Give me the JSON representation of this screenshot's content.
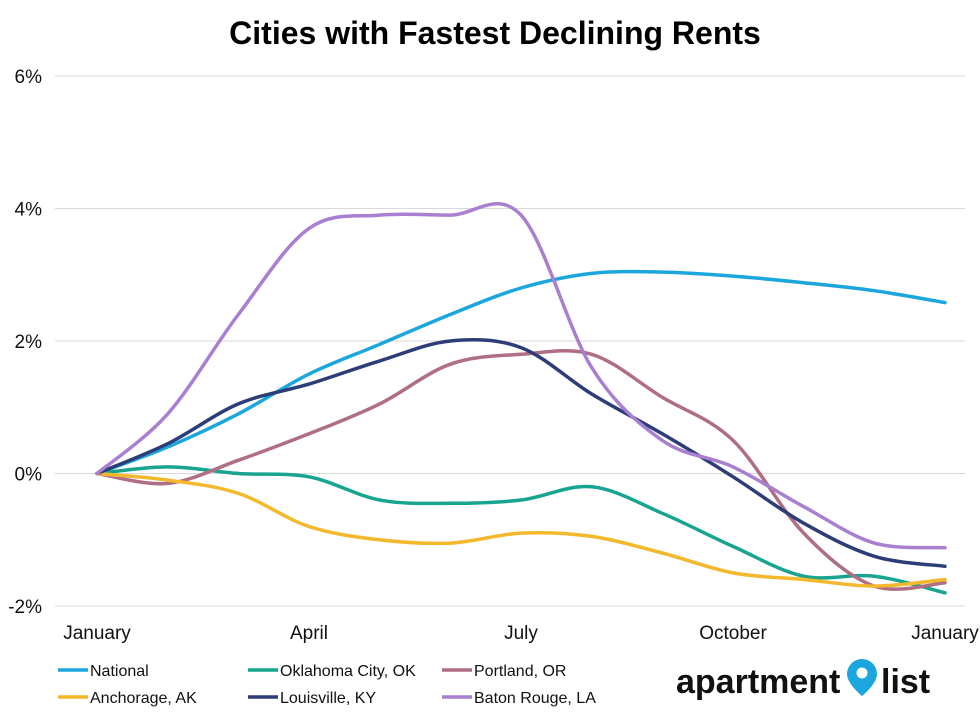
{
  "chart_data": {
    "type": "line",
    "title": "Cities with Fastest Declining Rents",
    "xlabel": "",
    "ylabel": "",
    "x": [
      0,
      1,
      2,
      3,
      4,
      5,
      6,
      7,
      8,
      9,
      10,
      11,
      12
    ],
    "x_tick_labels": [
      {
        "x": 0,
        "label": "January"
      },
      {
        "x": 3,
        "label": "April"
      },
      {
        "x": 6,
        "label": "July"
      },
      {
        "x": 9,
        "label": "October"
      },
      {
        "x": 12,
        "label": "January"
      }
    ],
    "ylim": [
      -2,
      6
    ],
    "y_ticks": [
      -2,
      0,
      2,
      4,
      6
    ],
    "y_tick_labels": [
      "-2%",
      "0%",
      "2%",
      "4%",
      "6%"
    ],
    "grid": true,
    "legend_position": "bottom-left",
    "series": [
      {
        "name": "National",
        "color": "#1ba7de",
        "values": [
          0,
          0.4,
          0.9,
          1.5,
          1.95,
          2.4,
          2.8,
          3.02,
          3.04,
          2.98,
          2.88,
          2.76,
          2.58
        ]
      },
      {
        "name": "Oklahoma City, OK",
        "color": "#17a58f",
        "values": [
          0,
          0.1,
          0.0,
          -0.05,
          -0.4,
          -0.45,
          -0.4,
          -0.2,
          -0.6,
          -1.1,
          -1.55,
          -1.55,
          -1.8
        ]
      },
      {
        "name": "Portland, OR",
        "color": "#b06e83",
        "values": [
          0,
          -0.15,
          0.2,
          0.6,
          1.05,
          1.65,
          1.8,
          1.8,
          1.15,
          0.5,
          -0.9,
          -1.7,
          -1.65
        ]
      },
      {
        "name": "Anchorage, AK",
        "color": "#f3b82c",
        "values": [
          0,
          -0.1,
          -0.3,
          -0.8,
          -1.0,
          -1.05,
          -0.9,
          -0.95,
          -1.2,
          -1.5,
          -1.6,
          -1.7,
          -1.6
        ]
      },
      {
        "name": "Louisville, KY",
        "color": "#2c3d78",
        "values": [
          0,
          0.45,
          1.05,
          1.35,
          1.7,
          2.0,
          1.9,
          1.2,
          0.6,
          -0.05,
          -0.75,
          -1.25,
          -1.4
        ]
      },
      {
        "name": "Baton Rouge, LA",
        "color": "#a97fd1",
        "values": [
          0,
          0.9,
          2.4,
          3.7,
          3.9,
          3.9,
          3.9,
          1.6,
          0.5,
          0.1,
          -0.5,
          -1.05,
          -1.12
        ]
      }
    ]
  },
  "logo": {
    "word_left": "apartment",
    "word_right": "list",
    "pin_color": "#1ba7de"
  }
}
